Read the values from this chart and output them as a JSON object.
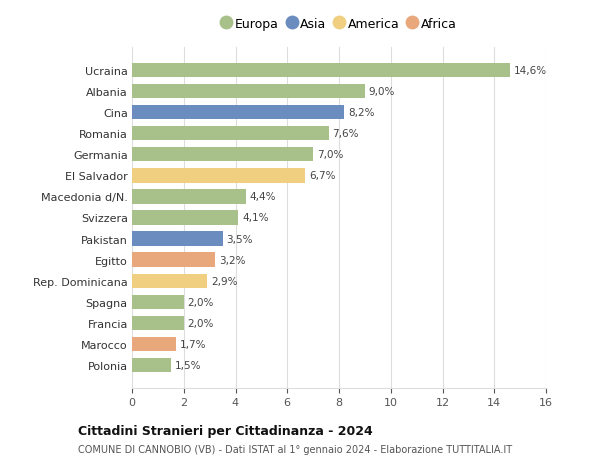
{
  "categories": [
    "Polonia",
    "Marocco",
    "Francia",
    "Spagna",
    "Rep. Dominicana",
    "Egitto",
    "Pakistan",
    "Svizzera",
    "Macedonia d/N.",
    "El Salvador",
    "Germania",
    "Romania",
    "Cina",
    "Albania",
    "Ucraina"
  ],
  "values": [
    1.5,
    1.7,
    2.0,
    2.0,
    2.9,
    3.2,
    3.5,
    4.1,
    4.4,
    6.7,
    7.0,
    7.6,
    8.2,
    9.0,
    14.6
  ],
  "labels": [
    "1,5%",
    "1,7%",
    "2,0%",
    "2,0%",
    "2,9%",
    "3,2%",
    "3,5%",
    "4,1%",
    "4,4%",
    "6,7%",
    "7,0%",
    "7,6%",
    "8,2%",
    "9,0%",
    "14,6%"
  ],
  "continents": [
    "Europa",
    "Africa",
    "Europa",
    "Europa",
    "America",
    "Africa",
    "Asia",
    "Europa",
    "Europa",
    "America",
    "Europa",
    "Europa",
    "Asia",
    "Europa",
    "Europa"
  ],
  "continent_colors": {
    "Europa": "#a8c08a",
    "Asia": "#6b8cbf",
    "America": "#f0d080",
    "Africa": "#e8a87c"
  },
  "legend_order": [
    "Europa",
    "Asia",
    "America",
    "Africa"
  ],
  "title": "Cittadini Stranieri per Cittadinanza - 2024",
  "subtitle": "COMUNE DI CANNOBIO (VB) - Dati ISTAT al 1° gennaio 2024 - Elaborazione TUTTITALIA.IT",
  "xlim": [
    0,
    16
  ],
  "xticks": [
    0,
    2,
    4,
    6,
    8,
    10,
    12,
    14,
    16
  ],
  "background_color": "#ffffff",
  "grid_color": "#dddddd",
  "bar_height": 0.68
}
